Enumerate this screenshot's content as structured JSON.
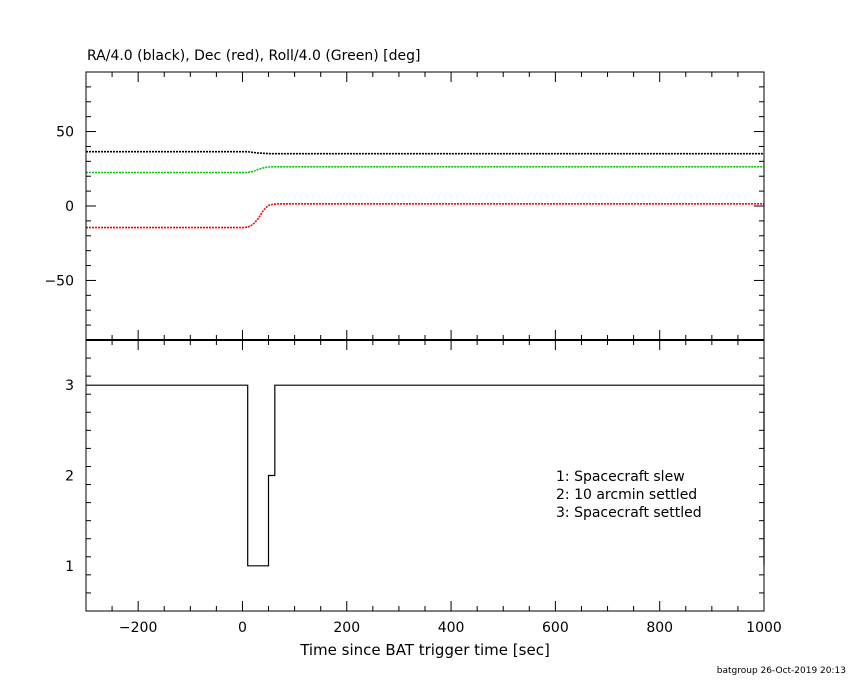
{
  "chart_data": [
    {
      "type": "line",
      "title": "RA/4.0 (black), Dec (red), Roll/4.0 (Green) [deg]",
      "xlim": [
        -300,
        1000
      ],
      "ylim": [
        -90,
        90
      ],
      "y_ticks": [
        50,
        0,
        -50
      ],
      "grid": false,
      "series": [
        {
          "color": "#000000",
          "points": [
            [
              -300,
              36.5
            ],
            [
              0,
              36.5
            ],
            [
              10,
              36.5
            ],
            [
              20,
              36.0
            ],
            [
              30,
              35.6
            ],
            [
              40,
              35.4
            ],
            [
              50,
              35.2
            ],
            [
              60,
              35.1
            ],
            [
              1000,
              35.1
            ]
          ]
        },
        {
          "color": "#ff0000",
          "points": [
            [
              -300,
              -14.5
            ],
            [
              0,
              -14.5
            ],
            [
              10,
              -14.2
            ],
            [
              20,
              -12.5
            ],
            [
              30,
              -8.5
            ],
            [
              40,
              -3.0
            ],
            [
              50,
              0.5
            ],
            [
              60,
              1.2
            ],
            [
              70,
              1.5
            ],
            [
              1000,
              1.5
            ]
          ]
        },
        {
          "color": "#00cc00",
          "points": [
            [
              -300,
              22.5
            ],
            [
              0,
              22.5
            ],
            [
              10,
              22.5
            ],
            [
              20,
              23.2
            ],
            [
              30,
              24.6
            ],
            [
              40,
              25.6
            ],
            [
              50,
              26.2
            ],
            [
              60,
              26.3
            ],
            [
              1000,
              26.3
            ]
          ]
        }
      ]
    },
    {
      "type": "line",
      "step": true,
      "xlabel": "Time since BAT trigger time [sec]",
      "xlim": [
        -300,
        1000
      ],
      "ylim": [
        0.5,
        3.5
      ],
      "x_ticks": [
        -200,
        0,
        200,
        400,
        600,
        800,
        1000
      ],
      "y_ticks": [
        3,
        2,
        1
      ],
      "grid": false,
      "annotations": [
        "1: Spacecraft slew",
        "2: 10 arcmin settled",
        "3: Spacecraft settled"
      ],
      "series": [
        {
          "color": "#000000",
          "points": [
            [
              -300,
              3
            ],
            [
              10,
              3
            ],
            [
              10,
              1
            ],
            [
              50,
              1
            ],
            [
              50,
              2
            ],
            [
              62,
              2
            ],
            [
              62,
              3
            ],
            [
              1000,
              3
            ],
            [
              1000,
              1
            ]
          ]
        }
      ]
    }
  ],
  "footer": "batgroup 26-Oct-2019 20:13"
}
